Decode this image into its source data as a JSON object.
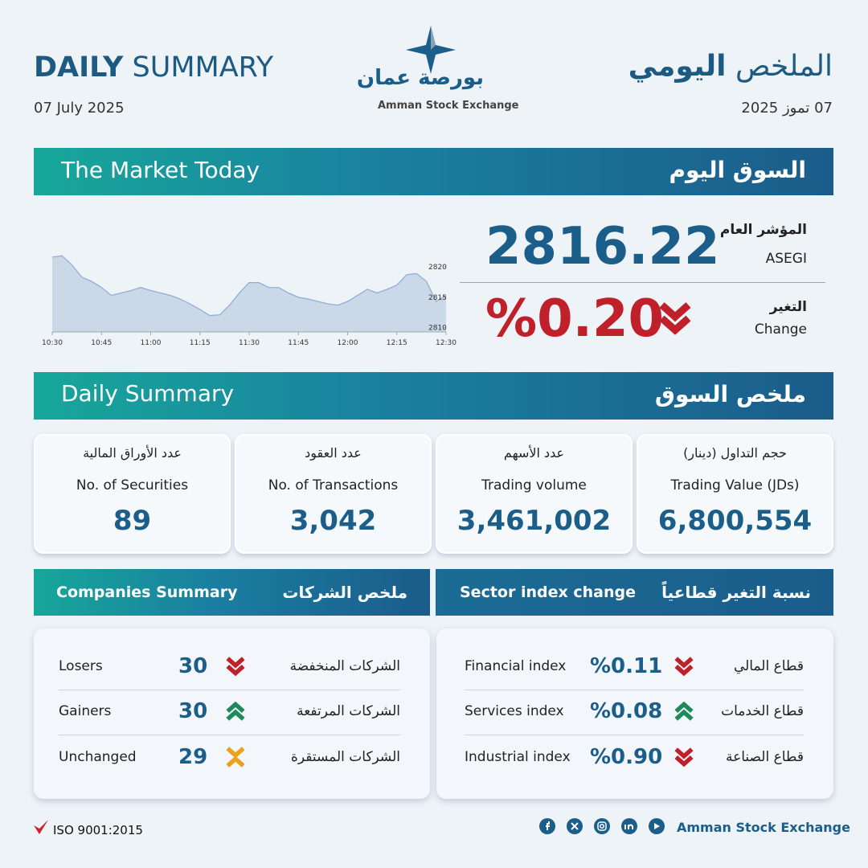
{
  "header": {
    "title_bold": "DAILY",
    "title_rest": "SUMMARY",
    "date": "07 July 2025",
    "ar_title_light": "الملخص",
    "ar_title_bold": "اليومي",
    "ar_date": "07 تموز 2025",
    "logo_ar": "بورصة عمان",
    "logo_en": "Amman Stock Exchange"
  },
  "market_banner": {
    "en": "The Market Today",
    "ar": "السوق اليوم"
  },
  "index": {
    "label_ar": "المؤشر العام",
    "label_en": "ASEGI",
    "value": "2816.22",
    "change_label_ar": "التغير",
    "change_label_en": "Change",
    "change": "%0.20",
    "trend": "down"
  },
  "chart_data": {
    "type": "line",
    "categories": [
      "10:30",
      null,
      null,
      null,
      null,
      "10:45",
      null,
      null,
      null,
      null,
      "11:00",
      null,
      null,
      null,
      null,
      "11:15",
      null,
      null,
      null,
      null,
      "11:30",
      null,
      null,
      null,
      null,
      "11:45",
      null,
      null,
      null,
      null,
      "12:00",
      null,
      null,
      null,
      null,
      "12:15",
      null,
      null,
      null,
      null,
      "12:30"
    ],
    "values": [
      2821.6,
      2821.8,
      2820.3,
      2818.3,
      2817.6,
      2816.6,
      2815.3,
      2815.7,
      2816.1,
      2816.6,
      2816.1,
      2815.7,
      2815.3,
      2814.7,
      2813.9,
      2813.0,
      2812.0,
      2812.1,
      2813.7,
      2815.7,
      2817.4,
      2817.4,
      2816.6,
      2816.6,
      2815.7,
      2815.0,
      2814.7,
      2814.3,
      2813.9,
      2813.7,
      2814.3,
      2815.3,
      2816.3,
      2815.7,
      2816.3,
      2817.0,
      2818.7,
      2818.9,
      2817.6,
      2814.3,
      2815.3
    ],
    "color": "#8fb0d6",
    "ylim": [
      2809.3,
      2822.9
    ],
    "yticks": [
      2810,
      2815,
      2820
    ]
  },
  "summary_banner": {
    "en": "Daily Summary",
    "ar": "ملخص السوق"
  },
  "cards": [
    {
      "ar": "عدد الأوراق المالية",
      "en": "No. of Securities",
      "value": "89"
    },
    {
      "ar": "عدد العقود",
      "en": "No. of Transactions",
      "value": "3,042"
    },
    {
      "ar": "عدد الأسهم",
      "en": "Trading volume",
      "value": "3,461,002"
    },
    {
      "ar": "حجم التداول (دينار)",
      "en": "Trading Value (JDs)",
      "value": "6,800,554"
    }
  ],
  "companies": {
    "title_en": "Companies Summary",
    "title_ar": "ملخص الشركات",
    "rows": [
      {
        "en": "Losers",
        "value": "30",
        "ar": "الشركات المنخفضة",
        "trend": "down"
      },
      {
        "en": "Gainers",
        "value": "30",
        "ar": "الشركات المرتفعة",
        "trend": "up"
      },
      {
        "en": "Unchanged",
        "value": "29",
        "ar": "الشركات المستقرة",
        "trend": "flat"
      }
    ]
  },
  "sectors": {
    "title_en": "Sector index change",
    "title_ar": "نسبة التغير قطاعياً",
    "rows": [
      {
        "en": "Financial index",
        "value": "%0.11",
        "ar": "قطاع المالي",
        "trend": "down"
      },
      {
        "en": "Services index",
        "value": "%0.08",
        "ar": "قطاع الخدمات",
        "trend": "up"
      },
      {
        "en": "Industrial index",
        "value": "%0.90",
        "ar": "قطاع الصناعة",
        "trend": "down"
      }
    ]
  },
  "footer": {
    "iso": "ISO 9001:2015",
    "org": "Amman Stock Exchange"
  }
}
